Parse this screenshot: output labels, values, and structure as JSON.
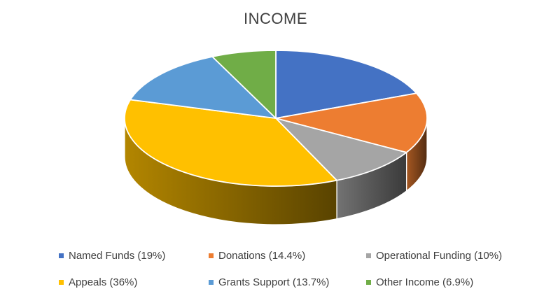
{
  "chart_data": {
    "type": "pie",
    "style": "3d",
    "title": "INCOME",
    "start_angle_deg": 0,
    "direction": "clockwise",
    "categories": [
      "Named Funds",
      "Donations",
      "Operational Funding",
      "Appeals",
      "Grants Support",
      "Other Income"
    ],
    "values": [
      19,
      14.4,
      10,
      36,
      13.7,
      6.9
    ],
    "unit": "%",
    "colors": [
      "#4472C4",
      "#ED7D31",
      "#A5A5A5",
      "#FFC000",
      "#5B9BD5",
      "#70AD47"
    ],
    "legend": {
      "position": "bottom",
      "rows": 2,
      "columns": 3,
      "entries": [
        "Named Funds (19%)",
        "Donations (14.4%)",
        "Operational Funding (10%)",
        "Appeals (36%)",
        "Grants Support (13.7%)",
        "Other Income (6.9%)"
      ]
    }
  },
  "styles": {
    "title_color": "#404040",
    "legend_text_color": "#404040",
    "background": "#FFFFFF",
    "slice_border_color": "#FFFFFF"
  }
}
